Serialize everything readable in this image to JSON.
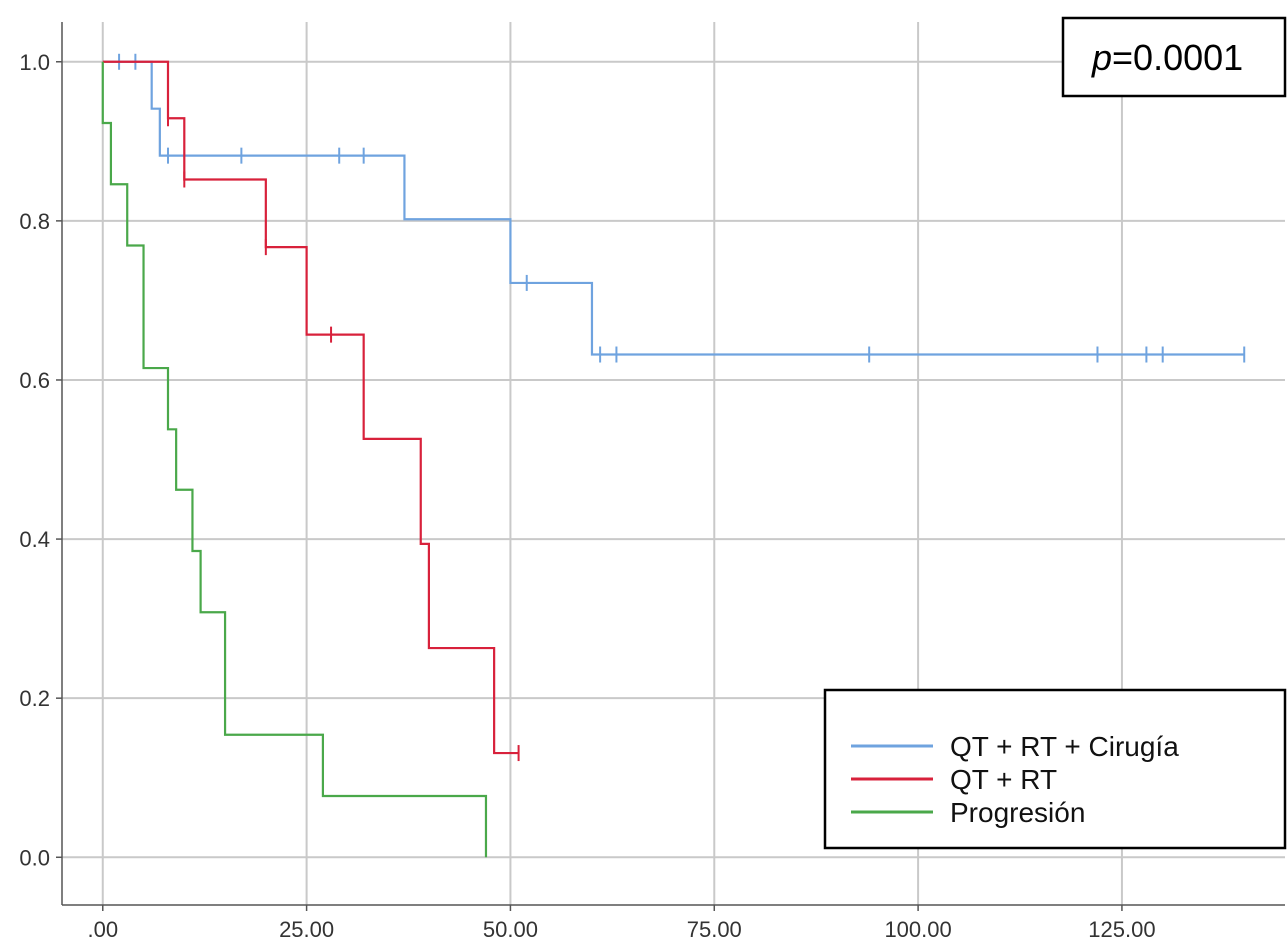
{
  "chart_data": {
    "type": "line",
    "subtype": "kaplan-meier-step",
    "title": "",
    "xlabel": "",
    "ylabel": "",
    "xlim": [
      -5,
      145
    ],
    "ylim": [
      -0.06,
      1.05
    ],
    "xticks": [
      0,
      25,
      50,
      75,
      100,
      125
    ],
    "xtick_labels": [
      ".00",
      "25.00",
      "50.00",
      "75.00",
      "100.00",
      "125.00"
    ],
    "yticks": [
      0,
      0.2,
      0.4,
      0.6,
      0.8,
      1.0
    ],
    "ytick_labels": [
      "0.0",
      "0.2",
      "0.4",
      "0.6",
      "0.8",
      "1.0"
    ],
    "grid": true,
    "legend_position": "bottom-right",
    "annotation": {
      "italic": "p",
      "text": "=0.0001",
      "position": "top-right"
    },
    "series": [
      {
        "name": "QT + RT + Cirugía",
        "color": "#6fa3df",
        "steps": [
          [
            0,
            1.0
          ],
          [
            6,
            0.941
          ],
          [
            7,
            0.882
          ],
          [
            37,
            0.802
          ],
          [
            50,
            0.722
          ],
          [
            60,
            0.632
          ],
          [
            140,
            0.632
          ]
        ],
        "censored": [
          [
            2,
            1.0
          ],
          [
            4,
            1.0
          ],
          [
            8,
            0.882
          ],
          [
            17,
            0.882
          ],
          [
            29,
            0.882
          ],
          [
            32,
            0.882
          ],
          [
            52,
            0.722
          ],
          [
            61,
            0.632
          ],
          [
            63,
            0.632
          ],
          [
            94,
            0.632
          ],
          [
            122,
            0.632
          ],
          [
            128,
            0.632
          ],
          [
            130,
            0.632
          ],
          [
            140,
            0.632
          ]
        ]
      },
      {
        "name": "QT + RT",
        "color": "#d8213b",
        "steps": [
          [
            0,
            1.0
          ],
          [
            8,
            0.929
          ],
          [
            10,
            0.852
          ],
          [
            20,
            0.767
          ],
          [
            25,
            0.657
          ],
          [
            32,
            0.526
          ],
          [
            39,
            0.394
          ],
          [
            40,
            0.263
          ],
          [
            48,
            0.131
          ],
          [
            51,
            0.131
          ]
        ],
        "censored": [
          [
            8,
            0.929
          ],
          [
            10,
            0.852
          ],
          [
            20,
            0.767
          ],
          [
            28,
            0.657
          ],
          [
            51,
            0.131
          ]
        ]
      },
      {
        "name": "Progresión",
        "color": "#4aa84a",
        "steps": [
          [
            0,
            1.0
          ],
          [
            0,
            0.923
          ],
          [
            1,
            0.846
          ],
          [
            3,
            0.769
          ],
          [
            5,
            0.615
          ],
          [
            8,
            0.538
          ],
          [
            9,
            0.462
          ],
          [
            11,
            0.385
          ],
          [
            12,
            0.308
          ],
          [
            15,
            0.154
          ],
          [
            27,
            0.077
          ],
          [
            47,
            0.0
          ]
        ],
        "censored": []
      }
    ]
  }
}
